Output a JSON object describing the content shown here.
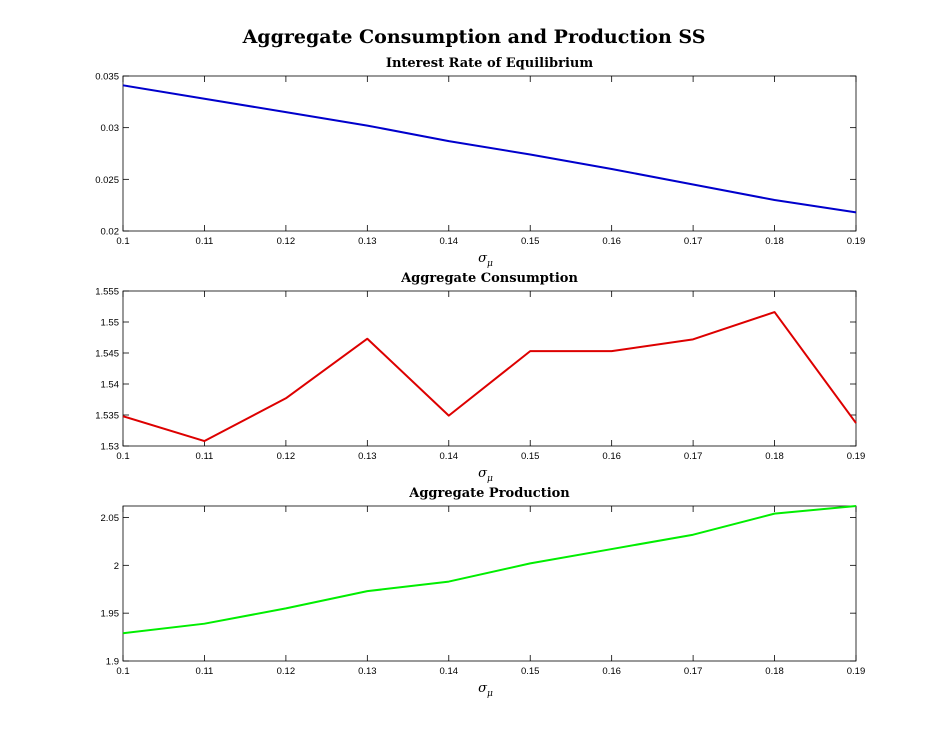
{
  "suptitle": "Aggregate Consumption and Production SS",
  "chart_data": [
    {
      "type": "line",
      "title": "Interest Rate of Equilibrium",
      "xlabel": "σ_μ",
      "xlabel_main": "σ",
      "xlabel_sub": "μ",
      "ylabel": "",
      "x": [
        0.1,
        0.11,
        0.12,
        0.13,
        0.14,
        0.15,
        0.16,
        0.17,
        0.18,
        0.19
      ],
      "xlim": [
        0.1,
        0.19
      ],
      "ylim": [
        0.02,
        0.035
      ],
      "xticks": [
        "0.1",
        "0.11",
        "0.12",
        "0.13",
        "0.14",
        "0.15",
        "0.16",
        "0.17",
        "0.18",
        "0.19"
      ],
      "yticks": [
        "0.02",
        "0.025",
        "0.03",
        "0.035"
      ],
      "grid": false,
      "series": [
        {
          "color": "#0000cc",
          "values": [
            0.0341,
            0.0328,
            0.0315,
            0.0302,
            0.0287,
            0.0274,
            0.026,
            0.0245,
            0.023,
            0.0218
          ]
        }
      ]
    },
    {
      "type": "line",
      "title": "Aggregate Consumption",
      "xlabel": "σ_μ",
      "xlabel_main": "σ",
      "xlabel_sub": "μ",
      "ylabel": "",
      "x": [
        0.1,
        0.11,
        0.12,
        0.13,
        0.14,
        0.15,
        0.16,
        0.17,
        0.18,
        0.19
      ],
      "xlim": [
        0.1,
        0.19
      ],
      "ylim": [
        1.53,
        1.555
      ],
      "xticks": [
        "0.1",
        "0.11",
        "0.12",
        "0.13",
        "0.14",
        "0.15",
        "0.16",
        "0.17",
        "0.18",
        "0.19"
      ],
      "yticks": [
        "1.53",
        "1.535",
        "1.54",
        "1.545",
        "1.55",
        "1.555"
      ],
      "grid": false,
      "series": [
        {
          "color": "#dd0000",
          "values": [
            1.5348,
            1.5308,
            1.5377,
            1.5473,
            1.5349,
            1.5453,
            1.5453,
            1.5472,
            1.5516,
            1.5337
          ]
        }
      ]
    },
    {
      "type": "line",
      "title": "Aggregate Production",
      "xlabel": "σ_μ",
      "xlabel_main": "σ",
      "xlabel_sub": "μ",
      "ylabel": "",
      "x": [
        0.1,
        0.11,
        0.12,
        0.13,
        0.14,
        0.15,
        0.16,
        0.17,
        0.18,
        0.19
      ],
      "xlim": [
        0.1,
        0.19
      ],
      "ylim": [
        1.9,
        2.062
      ],
      "xticks": [
        "0.1",
        "0.11",
        "0.12",
        "0.13",
        "0.14",
        "0.15",
        "0.16",
        "0.17",
        "0.18",
        "0.19"
      ],
      "yticks": [
        "1.9",
        "1.95",
        "2",
        "2.05"
      ],
      "grid": false,
      "series": [
        {
          "color": "#00ee00",
          "values": [
            1.929,
            1.939,
            1.955,
            1.973,
            1.983,
            2.002,
            2.017,
            2.032,
            2.054,
            2.062
          ]
        }
      ]
    }
  ]
}
